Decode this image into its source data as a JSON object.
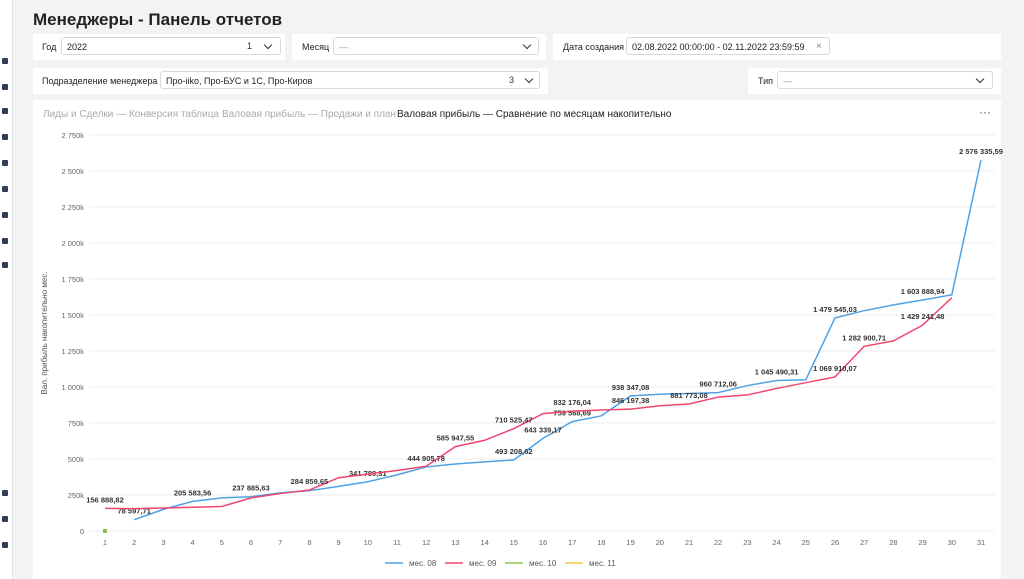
{
  "header": {
    "title": "Менеджеры - Панель отчетов"
  },
  "filters": {
    "year": {
      "label": "Год",
      "value": "2022",
      "count": 1
    },
    "month": {
      "label": "Месяц",
      "value": "—"
    },
    "date": {
      "label": "Дата создания",
      "value": "02.08.2022 00:00:00 - 02.11.2022 23:59:59"
    },
    "department": {
      "label": "Подразделение менеджера",
      "value": "Про-iiko, Про-БУС и 1С, Про-Киров",
      "count": 3
    },
    "type": {
      "label": "Тип",
      "value": "—"
    }
  },
  "tabs": [
    "Лиды и Сделки — Конверсия таблица",
    "Валовая прибыль — Продажи и план",
    "Валовая прибыль — Сравнение по месяцам накопительно"
  ],
  "chart_data": {
    "type": "line",
    "y_label": "Вал. прибыль накопительно мес.",
    "categories": [
      "1",
      "2",
      "3",
      "4",
      "5",
      "6",
      "7",
      "8",
      "9",
      "10",
      "11",
      "12",
      "13",
      "14",
      "15",
      "16",
      "17",
      "18",
      "19",
      "20",
      "21",
      "22",
      "23",
      "24",
      "25",
      "26",
      "27",
      "28",
      "29",
      "30",
      "31"
    ],
    "ylim": [
      0,
      2750000
    ],
    "yticks": [
      0,
      {
        "value": 250000,
        "label": "250k"
      },
      {
        "value": 500000,
        "label": "500k"
      },
      {
        "value": 750000,
        "label": "750k"
      },
      {
        "value": 1000000,
        "label": "1 000k"
      },
      {
        "value": 1250000,
        "label": "1 250k"
      },
      {
        "value": 1500000,
        "label": "1 500k"
      },
      {
        "value": 1750000,
        "label": "1 750k"
      },
      {
        "value": 2000000,
        "label": "2 000k"
      },
      {
        "value": 2250000,
        "label": "2 250k"
      },
      {
        "value": 2500000,
        "label": "2 500k"
      },
      {
        "value": 2750000,
        "label": "2 750k"
      }
    ],
    "grid": true,
    "legend": "bottom",
    "series": [
      {
        "name": "мес. 08",
        "color": "#4da2e6",
        "values": [
          null,
          78597.71,
          150000,
          205583.56,
          230000,
          237885.63,
          265000,
          280000,
          310000,
          341789.31,
          390000,
          444905.78,
          465000,
          480000,
          493208.62,
          643339.17,
          759568.69,
          800000,
          938347.08,
          950000,
          955000,
          960712.06,
          1010000,
          1045490.31,
          1050000,
          1479545.03,
          1530000,
          1570000,
          1603888.94,
          1640000,
          2576335.59
        ],
        "value_labels": [
          null,
          "78 597,71",
          null,
          "205 583,56",
          null,
          "237 885,63",
          null,
          null,
          null,
          "341 789,31",
          null,
          "444 905,78",
          null,
          null,
          "493 208,62",
          "643 339,17",
          "759 568,69",
          null,
          "938 347,08",
          null,
          null,
          "960 712,06",
          null,
          "1 045 490,31",
          null,
          "1 479 545,03",
          null,
          null,
          "1 603 888,94",
          null,
          "2 576 335,59"
        ]
      },
      {
        "name": "мес. 09",
        "color": "#f0466e",
        "values": [
          156888.82,
          155000,
          160000,
          165000,
          170000,
          230000,
          260000,
          284859.65,
          370000,
          395000,
          420000,
          450000,
          585947.55,
          630000,
          710525.47,
          815000,
          832176.04,
          840000,
          846197.38,
          870000,
          881773.08,
          930000,
          945000,
          990000,
          1030000,
          1069910.07,
          1282900.71,
          1320000,
          1429241.48,
          1620000,
          null
        ],
        "value_labels": [
          "156 888,82",
          null,
          null,
          null,
          null,
          null,
          null,
          "284 859,65",
          null,
          null,
          null,
          null,
          "585 947,55",
          null,
          "710 525,47",
          null,
          "832 176,04",
          null,
          "846 197,38",
          null,
          "881 773,08",
          null,
          null,
          null,
          null,
          "1 069 910,07",
          "1 282 900,71",
          null,
          "1 429 241,48",
          null,
          null
        ]
      },
      {
        "name": "мес. 10",
        "color": "#8ac74a",
        "values": [
          0,
          null,
          null,
          null,
          null,
          null,
          null,
          null,
          null,
          null,
          null,
          null,
          null,
          null,
          null,
          null,
          null,
          null,
          null,
          null,
          null,
          null,
          null,
          null,
          null,
          null,
          null,
          null,
          null,
          null,
          null
        ]
      },
      {
        "name": "мес. 11",
        "color": "#f5c842",
        "values": [
          null,
          null,
          null,
          null,
          null,
          null,
          null,
          null,
          null,
          null,
          null,
          null,
          null,
          null,
          null,
          null,
          null,
          null,
          null,
          null,
          null,
          null,
          null,
          null,
          null,
          null,
          null,
          null,
          null,
          null,
          null
        ]
      }
    ]
  }
}
